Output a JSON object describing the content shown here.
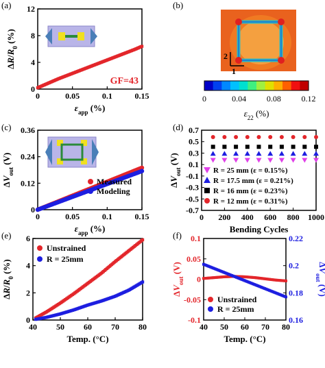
{
  "figure_panels": [
    "(a)",
    "(b)",
    "(c)",
    "(d)",
    "(e)",
    "(f)"
  ],
  "colors": {
    "red": "#e3262b",
    "blue": "#1d1ee0",
    "magenta": "#e040e8",
    "dark": "#000000",
    "gray": "#888888"
  },
  "chart_data": [
    {
      "panel": "(a)",
      "type": "scatter",
      "xlabel": "ε_app (%)",
      "ylabel": "ΔR/R₀ (%)",
      "xlim": [
        0,
        0.15
      ],
      "ylim": [
        0,
        12
      ],
      "xticks": [
        "0",
        "0.05",
        "0.1",
        "0.15"
      ],
      "yticks": [
        "0",
        "4",
        "8",
        "12"
      ],
      "series": [
        {
          "color": "#e3262b",
          "x": [
            0,
            0.01,
            0.02,
            0.03,
            0.04,
            0.05,
            0.06,
            0.07,
            0.08,
            0.09,
            0.1,
            0.11,
            0.12,
            0.13,
            0.14,
            0.15
          ],
          "y": [
            0.2,
            0.65,
            1.1,
            1.55,
            1.95,
            2.35,
            2.75,
            3.15,
            3.55,
            3.95,
            4.35,
            4.75,
            5.15,
            5.55,
            5.95,
            6.4
          ]
        }
      ],
      "annotation": "GF=43",
      "grid": false
    },
    {
      "panel": "(b)",
      "type": "heatmap",
      "colorbar_ticks": [
        "0",
        "0.04",
        "0.08",
        "0.12"
      ],
      "colorbar_range": [
        0,
        0.12
      ],
      "colorbar_label": "ε₂₂ (%)",
      "axis_labels": [
        "1",
        "2"
      ]
    },
    {
      "panel": "(c)",
      "type": "scatter",
      "xlabel": "ε_app (%)",
      "ylabel": "ΔV_out (V)",
      "xlim": [
        0,
        0.15
      ],
      "ylim": [
        0,
        0.36
      ],
      "xticks": [
        "0",
        "0.05",
        "0.1",
        "0.15"
      ],
      "yticks": [
        "0",
        "0.12",
        "0.24",
        "0.36"
      ],
      "series": [
        {
          "name": "Measured",
          "color": "#e3262b",
          "x": [
            0,
            0.15
          ],
          "y": [
            0,
            0.19
          ]
        },
        {
          "name": "Modeling",
          "color": "#1d1ee0",
          "x": [
            0,
            0.15
          ],
          "y": [
            0,
            0.175
          ]
        }
      ],
      "legend": "bottom-right",
      "grid": false
    },
    {
      "panel": "(d)",
      "type": "scatter",
      "xlabel": "Bending Cycles",
      "ylabel": "ΔV_out (V)",
      "xlim": [
        0,
        1000
      ],
      "ylim": [
        -0.7,
        0.7
      ],
      "xticks": [
        "0",
        "200",
        "400",
        "600",
        "800",
        "1000"
      ],
      "yticks": [
        "-0.7",
        "-0.5",
        "-0.3",
        "-0.1",
        "0.1",
        "0.3",
        "0.5",
        "0.7"
      ],
      "x": [
        100,
        200,
        300,
        400,
        500,
        600,
        700,
        800,
        900,
        1000
      ],
      "series": [
        {
          "name": "R = 25 mm (ε = 0.15%)",
          "color": "#e040e8",
          "marker": "triangle-down",
          "y": [
            0.18,
            0.18,
            0.18,
            0.18,
            0.18,
            0.18,
            0.18,
            0.18,
            0.18,
            0.18
          ]
        },
        {
          "name": "R = 17.5 mm (ε = 0.21%)",
          "color": "#1d1ee0",
          "marker": "triangle-up",
          "y": [
            0.29,
            0.29,
            0.29,
            0.29,
            0.29,
            0.29,
            0.29,
            0.29,
            0.29,
            0.29
          ]
        },
        {
          "name": "R = 16 mm (ε = 0.23%)",
          "color": "#000000",
          "marker": "square",
          "y": [
            0.41,
            0.41,
            0.41,
            0.41,
            0.41,
            0.41,
            0.41,
            0.41,
            0.41,
            0.41
          ]
        },
        {
          "name": "R = 12 mm (ε = 0.31%)",
          "color": "#e3262b",
          "marker": "circle",
          "y": [
            0.58,
            0.58,
            0.58,
            0.58,
            0.58,
            0.58,
            0.58,
            0.58,
            0.58,
            0.58
          ]
        }
      ],
      "legend": "bottom-left",
      "grid": false
    },
    {
      "panel": "(e)",
      "type": "scatter",
      "xlabel": "Temp. (°C)",
      "ylabel": "ΔR/R₀ (%)",
      "xlim": [
        40,
        80
      ],
      "ylim": [
        0,
        6
      ],
      "xticks": [
        "40",
        "50",
        "60",
        "70",
        "80"
      ],
      "yticks": [
        "0",
        "2",
        "4",
        "6"
      ],
      "series": [
        {
          "name": "Unstrained",
          "color": "#e3262b",
          "x": [
            41,
            45,
            50,
            55,
            60,
            65,
            70,
            75,
            80
          ],
          "y": [
            0.15,
            0.6,
            1.25,
            1.95,
            2.7,
            3.45,
            4.3,
            5.1,
            5.9
          ]
        },
        {
          "name": "R = 25mm",
          "color": "#1d1ee0",
          "x": [
            41,
            45,
            50,
            55,
            60,
            65,
            70,
            75,
            80
          ],
          "y": [
            0.05,
            0.2,
            0.45,
            0.75,
            1.1,
            1.4,
            1.75,
            2.2,
            2.8
          ]
        }
      ],
      "legend": "top-left",
      "grid": false
    },
    {
      "panel": "(f)",
      "type": "line",
      "xlabel": "Temp. (°C)",
      "ylabel": "ΔV_out (V)",
      "ylabel_right": "ΔV_out (V)",
      "xlim": [
        40,
        80
      ],
      "ylim": [
        -0.1,
        0.1
      ],
      "ylim_right": [
        0.16,
        0.22
      ],
      "xticks": [
        "40",
        "50",
        "60",
        "70",
        "80"
      ],
      "yticks": [
        "-0.1",
        "-0.05",
        "0",
        "0.05",
        "0.1"
      ],
      "yticks_right": [
        "0.16",
        "0.18",
        "0.2",
        "0.22"
      ],
      "series": [
        {
          "name": "Unstrained",
          "color": "#e3262b",
          "axis": "left",
          "x": [
            40,
            45,
            50,
            55,
            60,
            65,
            70,
            75,
            80
          ],
          "y": [
            0.002,
            0.004,
            0.006,
            0.007,
            0.006,
            0.004,
            0.001,
            -0.002,
            -0.004
          ]
        },
        {
          "name": "R = 25mm",
          "color": "#1d1ee0",
          "axis": "right",
          "x": [
            40,
            45,
            50,
            55,
            60,
            65,
            70,
            75,
            80
          ],
          "y": [
            0.201,
            0.198,
            0.195,
            0.192,
            0.189,
            0.186,
            0.183,
            0.18,
            0.177
          ]
        }
      ],
      "legend": "bottom-left",
      "grid": false
    }
  ]
}
